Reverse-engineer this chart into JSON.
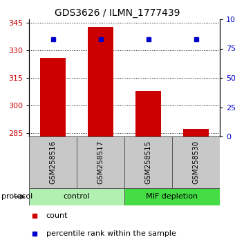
{
  "title": "GDS3626 / ILMN_1777439",
  "samples": [
    "GSM258516",
    "GSM258517",
    "GSM258515",
    "GSM258530"
  ],
  "bar_values": [
    326,
    343,
    308,
    287
  ],
  "percentile_values": [
    83,
    83,
    83,
    83
  ],
  "ylim_left": [
    283,
    347
  ],
  "yticks_left": [
    285,
    300,
    315,
    330,
    345
  ],
  "ylim_right": [
    0,
    100
  ],
  "yticks_right": [
    0,
    25,
    50,
    75,
    100
  ],
  "bar_color": "#cc0000",
  "percentile_color": "#0000cc",
  "bar_bottom": 283,
  "groups": [
    {
      "label": "control",
      "indices": [
        0,
        1
      ],
      "color": "#b2f0b2"
    },
    {
      "label": "MIF depletion",
      "indices": [
        2,
        3
      ],
      "color": "#44dd44"
    }
  ],
  "tick_label_color_left": "#cc0000",
  "tick_label_color_right": "#0000cc",
  "legend_count_color": "#cc0000",
  "legend_pct_color": "#0000cc",
  "sample_box_color": "#c8c8c8"
}
